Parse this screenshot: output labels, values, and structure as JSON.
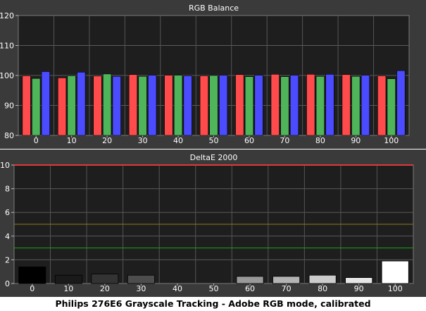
{
  "caption": "Philips 276E6 Grayscale Tracking - Adobe RGB mode, calibrated",
  "colors": {
    "background": "#3a3a3a",
    "plot_area": "#1e1e1e",
    "text": "#ffffff",
    "grid": "#5a5a5a",
    "red": "#ff4b4b",
    "green": "#4fb55a",
    "blue": "#4b4bff",
    "limit_line": "#e03a3a",
    "line_5": "#8c7a1a",
    "line_3": "#1aa51a"
  },
  "chart_data": [
    {
      "type": "bar",
      "title": "RGB Balance",
      "categories": [
        "0",
        "10",
        "20",
        "30",
        "40",
        "50",
        "60",
        "70",
        "80",
        "90",
        "100"
      ],
      "ylim": [
        80,
        120
      ],
      "yticks": [
        "80",
        "90",
        "100",
        "110",
        "120"
      ],
      "grid": true,
      "series": [
        {
          "color_key": "red",
          "values": [
            99.9,
            99.2,
            99.8,
            100.3,
            100.1,
            99.9,
            100.3,
            100.4,
            100.4,
            100.3,
            99.9
          ]
        },
        {
          "color_key": "green",
          "values": [
            99.0,
            99.9,
            100.5,
            99.7,
            100.1,
            100.0,
            99.6,
            99.6,
            99.7,
            99.7,
            98.9
          ]
        },
        {
          "color_key": "blue",
          "values": [
            101.3,
            101.1,
            99.7,
            100.1,
            99.9,
            100.1,
            100.1,
            100.1,
            100.4,
            100.1,
            101.6
          ]
        }
      ]
    },
    {
      "type": "bar",
      "title": "DeltaE 2000",
      "categories": [
        "0",
        "10",
        "20",
        "30",
        "40",
        "50",
        "60",
        "70",
        "80",
        "90",
        "100"
      ],
      "ylim": [
        0,
        10
      ],
      "yticks": [
        "0",
        "2",
        "4",
        "6",
        "8",
        "10"
      ],
      "grid": true,
      "reference_lines": [
        10,
        5,
        3
      ],
      "values": [
        1.4,
        0.7,
        0.8,
        0.7,
        0.0,
        0.0,
        0.6,
        0.6,
        0.7,
        0.5,
        1.9
      ]
    }
  ]
}
